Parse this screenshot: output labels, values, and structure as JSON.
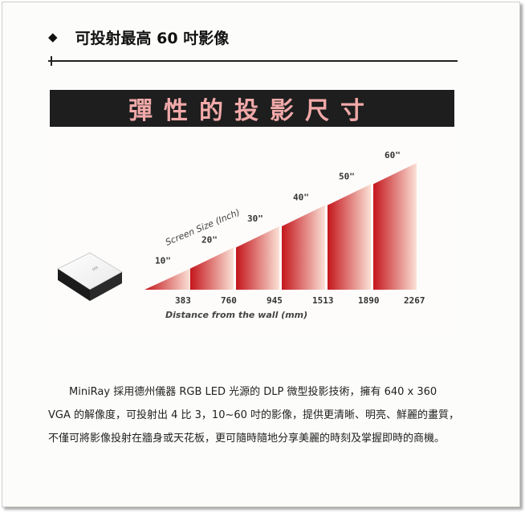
{
  "heading": {
    "bullet": "◆",
    "title": "可投射最高 60 吋影像"
  },
  "banner": {
    "title": "彈性的投影尺寸"
  },
  "chart_data": {
    "type": "bar",
    "ylabel": "Screen Size (Inch)",
    "xlabel": "Distance from the wall (mm)",
    "categories": [
      "383",
      "760",
      "945",
      "1513",
      "1890",
      "2267"
    ],
    "values": [
      10,
      20,
      30,
      40,
      50,
      60
    ],
    "data_labels": [
      "10\"",
      "20\"",
      "30\"",
      "40\"",
      "50\"",
      "60\""
    ],
    "ylim": [
      0,
      60
    ],
    "grid": false,
    "colors": {
      "start": "#c4161c",
      "end": "#fbe1d6",
      "text": "#333333"
    }
  },
  "body": {
    "paragraph": "MiniRay 採用德州儀器 RGB LED 光源的 DLP 微型投影技術，擁有 640 x 360 VGA 的解像度，可投射出 4 比 3，10~60 吋的影像，提供更清晰、明亮、鮮麗的畫質，不僅可將影像投射在牆身或天花板，更可隨時隨地分享美麗的時刻及掌握即時的商機。"
  }
}
